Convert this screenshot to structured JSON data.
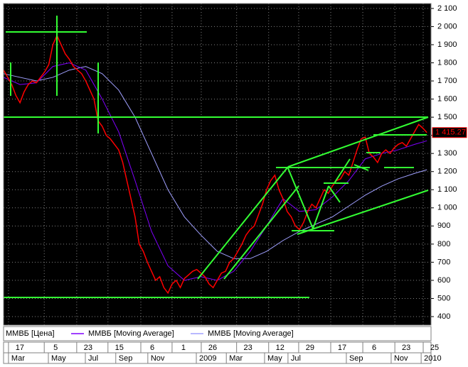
{
  "chart_data": {
    "type": "line",
    "ylim": [
      353,
      2127
    ],
    "yticks": [
      {
        "value": 2100,
        "label": "2 100"
      },
      {
        "value": 2000,
        "label": "2 000"
      },
      {
        "value": 1900,
        "label": "1 900"
      },
      {
        "value": 1800,
        "label": "1 800"
      },
      {
        "value": 1700,
        "label": "1 700"
      },
      {
        "value": 1600,
        "label": "1 600"
      },
      {
        "value": 1500,
        "label": "1 500"
      },
      {
        "value": 1400,
        "label": "1 400"
      },
      {
        "value": 1300,
        "label": "1 300"
      },
      {
        "value": 1200,
        "label": "1 200"
      },
      {
        "value": 1100,
        "label": "1 100"
      },
      {
        "value": 1000,
        "label": "1 000"
      },
      900,
      800,
      700,
      600,
      500,
      400
    ],
    "xlim": [
      0,
      104
    ],
    "xticks": [
      {
        "value": 1.2,
        "label": "17"
      },
      {
        "value": 9.9,
        "label": "5"
      },
      {
        "value": 17.8,
        "label": "23"
      },
      {
        "value": 25.4,
        "label": "15"
      },
      {
        "value": 33.4,
        "label": "6"
      },
      {
        "value": 41.0,
        "label": "1"
      },
      {
        "value": 48.1,
        "label": "26"
      },
      {
        "value": 56.7,
        "label": "23"
      },
      {
        "value": 64.5,
        "label": "12"
      },
      {
        "value": 71.8,
        "label": "29"
      },
      {
        "value": 79.6,
        "label": "17"
      },
      {
        "value": 87.4,
        "label": "6"
      },
      {
        "value": 95.2,
        "label": "23"
      },
      {
        "value": 102.1,
        "label": "25"
      }
    ],
    "period_ticks": [
      {
        "value": 1.2,
        "label": "Mar"
      },
      {
        "value": 10.9,
        "label": "May"
      },
      {
        "value": 19.9,
        "label": "Jul"
      },
      {
        "value": 27.3,
        "label": "Sep"
      },
      {
        "value": 35.1,
        "label": "Nov"
      },
      {
        "value": 46.9,
        "label": "2009"
      },
      {
        "value": 54.2,
        "label": "Mar"
      },
      {
        "value": 63.5,
        "label": "May"
      },
      {
        "value": 69.2,
        "label": "Jul"
      },
      {
        "value": 83.4,
        "label": "Sep"
      },
      {
        "value": 94.3,
        "label": "Nov"
      },
      {
        "value": 101.6,
        "label": "2010"
      }
    ],
    "grid": true,
    "last_label": "1 415.27",
    "series": [
      {
        "name": "ММВБ [Цена]",
        "color": "#ff0000",
        "x": [
          0,
          1,
          2,
          3,
          4,
          5,
          6,
          7,
          8,
          9,
          10,
          11,
          12,
          13,
          14,
          15,
          16,
          17,
          18,
          19,
          20,
          21,
          22,
          23,
          24,
          25,
          26,
          27,
          28,
          29,
          30,
          31,
          32,
          33,
          34,
          35,
          36,
          37,
          38,
          39,
          40,
          41,
          42,
          43,
          44,
          45,
          46,
          47,
          48,
          49,
          50,
          51,
          52,
          53,
          54,
          55,
          56,
          57,
          58,
          59,
          60,
          61,
          62,
          63,
          64,
          65,
          66,
          67,
          68,
          69,
          70,
          71,
          72,
          73,
          74,
          75,
          76,
          77,
          78,
          79,
          80,
          81,
          82,
          83,
          84,
          85,
          86,
          87,
          88,
          89,
          90,
          91,
          92,
          93,
          94,
          95,
          96,
          97,
          98,
          99,
          100,
          101,
          102,
          103
        ],
        "values": [
          1760,
          1720,
          1680,
          1620,
          1580,
          1640,
          1680,
          1700,
          1690,
          1720,
          1750,
          1790,
          1900,
          1950,
          1900,
          1850,
          1820,
          1780,
          1760,
          1740,
          1700,
          1650,
          1600,
          1480,
          1450,
          1400,
          1380,
          1350,
          1320,
          1250,
          1150,
          1050,
          950,
          800,
          760,
          700,
          650,
          600,
          620,
          560,
          530,
          580,
          600,
          560,
          610,
          630,
          650,
          660,
          640,
          620,
          580,
          560,
          600,
          640,
          650,
          700,
          720,
          760,
          800,
          850,
          880,
          900,
          960,
          1020,
          1100,
          1150,
          1180,
          1100,
          1050,
          980,
          950,
          900,
          880,
          920,
          980,
          1020,
          1000,
          1050,
          1100,
          1080,
          1120,
          1150,
          1160,
          1200,
          1180,
          1250,
          1320,
          1380,
          1390,
          1300,
          1280,
          1250,
          1300,
          1320,
          1300,
          1330,
          1350,
          1360,
          1340,
          1380,
          1420,
          1460,
          1440,
          1415.27
        ]
      },
      {
        "name": "ММВБ [Moving Average]",
        "color": "#8000ff",
        "x": [
          0,
          4,
          8,
          12,
          16,
          20,
          24,
          28,
          32,
          36,
          40,
          44,
          48,
          52,
          56,
          60,
          64,
          68,
          72,
          76,
          80,
          84,
          88,
          92,
          96,
          100,
          103
        ],
        "values": [
          1720,
          1680,
          1690,
          1780,
          1800,
          1760,
          1600,
          1420,
          1150,
          870,
          680,
          600,
          620,
          600,
          650,
          760,
          900,
          1050,
          980,
          990,
          1060,
          1150,
          1270,
          1300,
          1320,
          1350,
          1370
        ]
      },
      {
        "name": "ММВБ [Moving Average]",
        "color": "#a0a0ff",
        "x": [
          0,
          4,
          8,
          12,
          16,
          20,
          24,
          28,
          32,
          36,
          40,
          44,
          48,
          52,
          56,
          60,
          64,
          68,
          72,
          76,
          80,
          84,
          88,
          92,
          96,
          100,
          103
        ],
        "values": [
          1740,
          1720,
          1700,
          1720,
          1760,
          1780,
          1740,
          1650,
          1500,
          1300,
          1100,
          950,
          850,
          760,
          720,
          720,
          760,
          820,
          870,
          910,
          950,
          1010,
          1070,
          1120,
          1160,
          1190,
          1210
        ]
      }
    ]
  }
}
